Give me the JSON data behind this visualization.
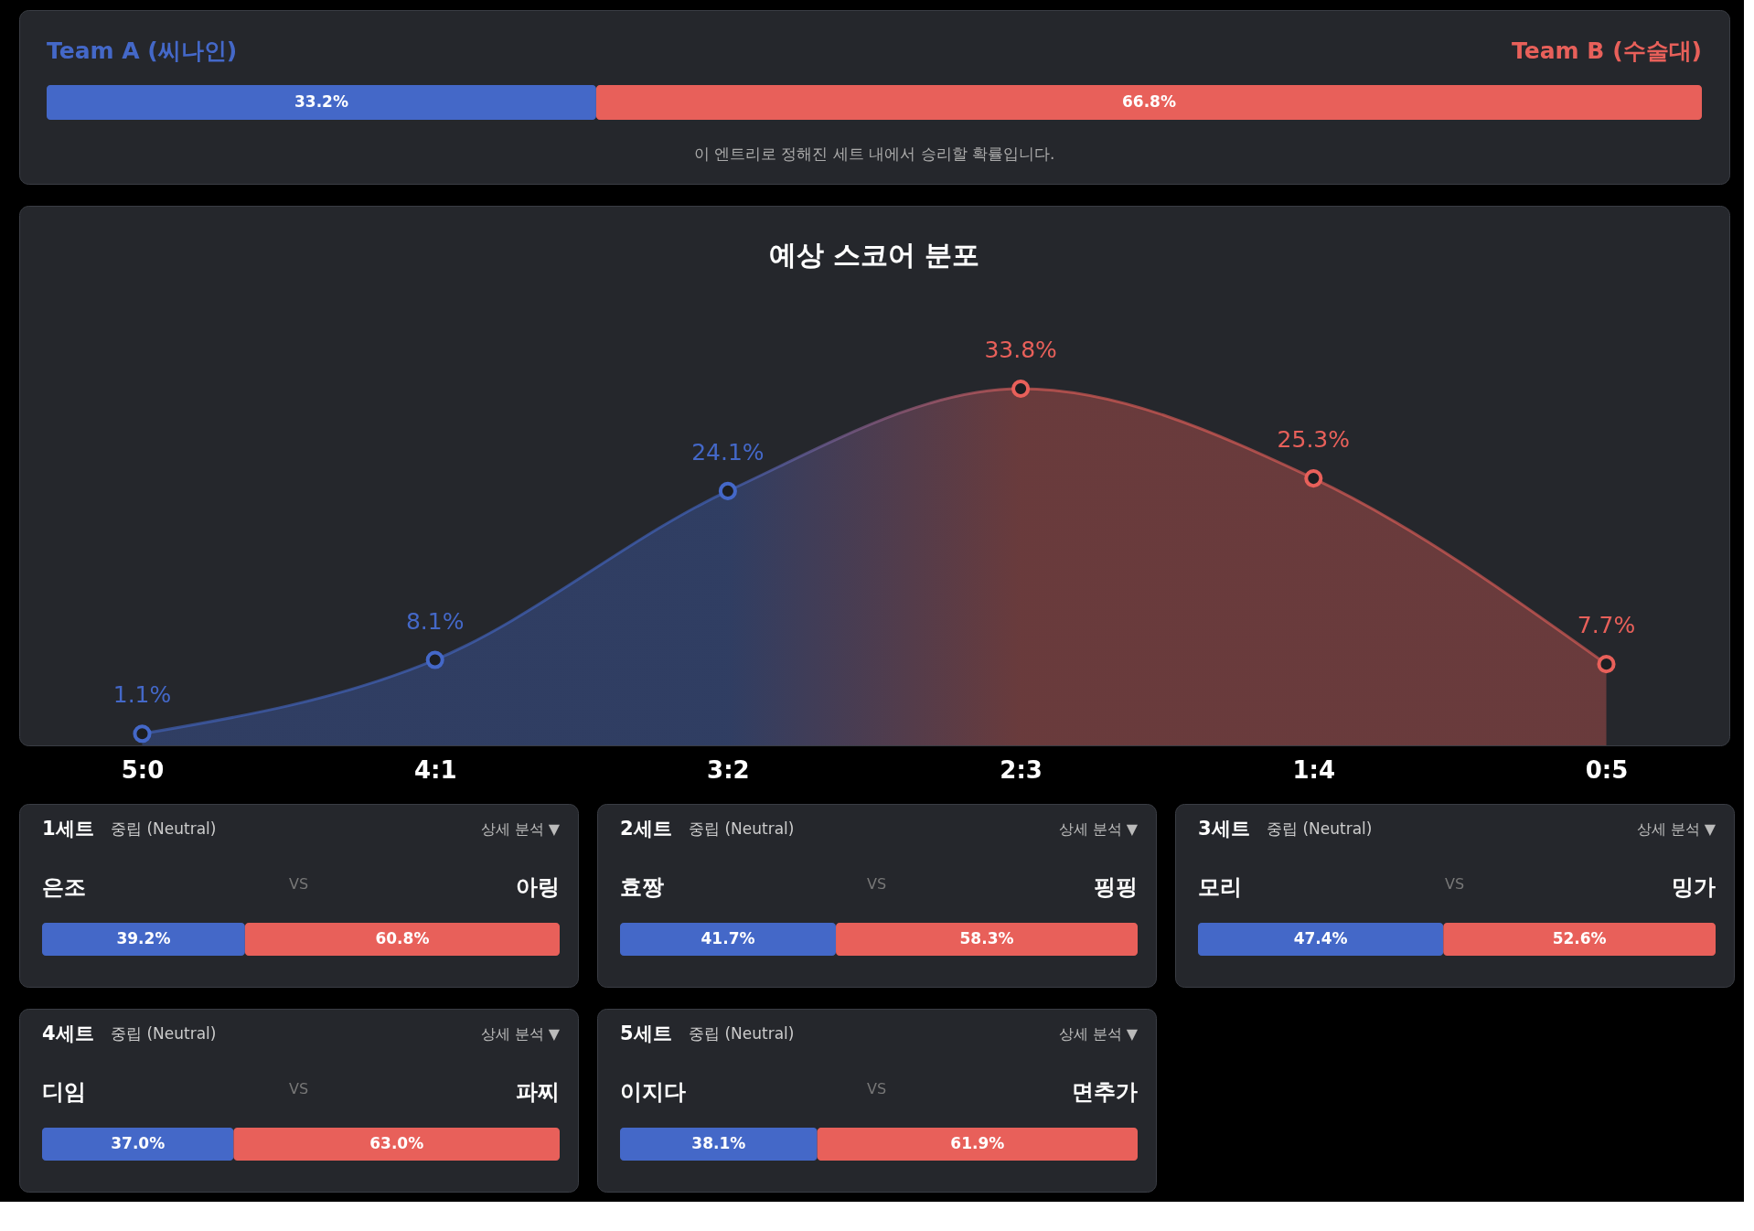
{
  "chart_data": [
    {
      "type": "bar",
      "orientation": "horizontal",
      "stacked": true,
      "categories": [
        null
      ],
      "series": [
        {
          "name": "Team A (씨나인)",
          "color": "#4468c8",
          "values": [
            33.2
          ],
          "value_labels": [
            "33.2%"
          ]
        },
        {
          "name": "Team B (수술대)",
          "color": "#e8605a",
          "values": [
            66.8
          ],
          "value_labels": [
            "66.8%"
          ]
        }
      ],
      "annotations": [
        "이 엔트리로 정해진 세트 내에서 승리할 확률입니다."
      ]
    },
    {
      "type": "area",
      "title": "예상 스코어 분포",
      "categories": [
        "5:0",
        "4:1",
        "3:2",
        "2:3",
        "1:4",
        "0:5"
      ],
      "values": [
        1.1,
        8.1,
        24.1,
        33.8,
        25.3,
        7.7
      ],
      "value_labels": [
        "1.1%",
        "8.1%",
        "24.1%",
        "33.8%",
        "25.3%",
        "7.7%"
      ],
      "colors": [
        "#4468c8",
        "#4468c8",
        "#4468c8",
        "#e8605a",
        "#e8605a",
        "#e8605a"
      ],
      "marker": "circle"
    },
    {
      "type": "bar",
      "orientation": "horizontal",
      "stacked": true,
      "title": "1세트",
      "categories": [
        null
      ],
      "series": [
        {
          "name": "은조",
          "color": "#4468c8",
          "values": [
            39.2
          ],
          "value_labels": [
            "39.2%"
          ]
        },
        {
          "name": "아링",
          "color": "#e8605a",
          "values": [
            60.8
          ],
          "value_labels": [
            "60.8%"
          ]
        }
      ],
      "annotations": [
        "중립 (Neutral)",
        "상세 분석 ▼",
        "VS"
      ]
    },
    {
      "type": "bar",
      "orientation": "horizontal",
      "stacked": true,
      "title": "2세트",
      "categories": [
        null
      ],
      "series": [
        {
          "name": "효짱",
          "color": "#4468c8",
          "values": [
            41.7
          ],
          "value_labels": [
            "41.7%"
          ]
        },
        {
          "name": "핑핑",
          "color": "#e8605a",
          "values": [
            58.3
          ],
          "value_labels": [
            "58.3%"
          ]
        }
      ],
      "annotations": [
        "중립 (Neutral)",
        "상세 분석 ▼",
        "VS"
      ]
    },
    {
      "type": "bar",
      "orientation": "horizontal",
      "stacked": true,
      "title": "3세트",
      "categories": [
        null
      ],
      "series": [
        {
          "name": "모리",
          "color": "#4468c8",
          "values": [
            47.4
          ],
          "value_labels": [
            "47.4%"
          ]
        },
        {
          "name": "밍가",
          "color": "#e8605a",
          "values": [
            52.6
          ],
          "value_labels": [
            "52.6%"
          ]
        }
      ],
      "annotations": [
        "중립 (Neutral)",
        "상세 분석 ▼",
        "VS"
      ]
    },
    {
      "type": "bar",
      "orientation": "horizontal",
      "stacked": true,
      "title": "4세트",
      "categories": [
        null
      ],
      "series": [
        {
          "name": "디임",
          "color": "#4468c8",
          "values": [
            37.0
          ],
          "value_labels": [
            "37.0%"
          ]
        },
        {
          "name": "파찌",
          "color": "#e8605a",
          "values": [
            63.0
          ],
          "value_labels": [
            "63.0%"
          ]
        }
      ],
      "annotations": [
        "중립 (Neutral)",
        "상세 분석 ▼",
        "VS"
      ]
    },
    {
      "type": "bar",
      "orientation": "horizontal",
      "stacked": true,
      "title": "5세트",
      "categories": [
        null
      ],
      "series": [
        {
          "name": "이지다",
          "color": "#4468c8",
          "values": [
            38.1
          ],
          "value_labels": [
            "38.1%"
          ]
        },
        {
          "name": "면추가",
          "color": "#e8605a",
          "values": [
            61.9
          ],
          "value_labels": [
            "61.9%"
          ]
        }
      ],
      "annotations": [
        "중립 (Neutral)",
        "상세 분석 ▼",
        "VS"
      ]
    }
  ]
}
